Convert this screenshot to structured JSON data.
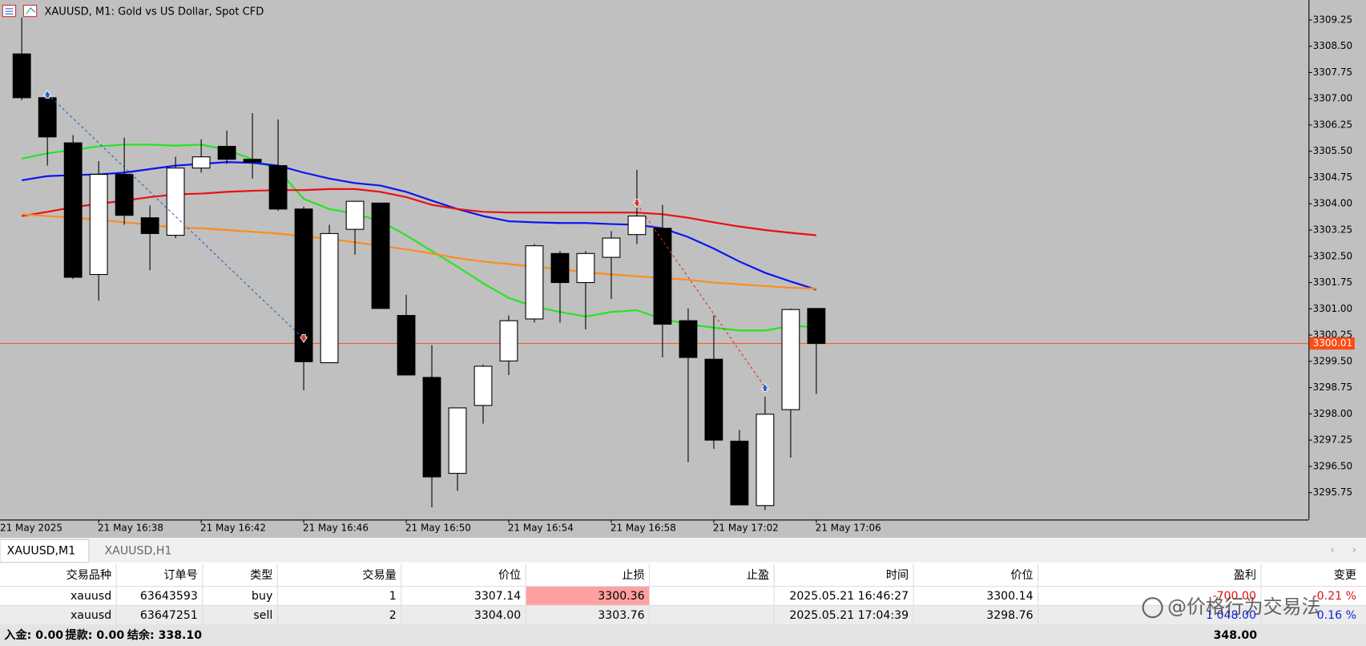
{
  "window": {
    "title": "XAUUSD, M1:  Gold vs US Dollar, Spot CFD"
  },
  "chart_data": {
    "type": "candlestick",
    "x_start_label": "21 May 2025",
    "categories": [
      null,
      null,
      null,
      "21 May 16:38",
      null,
      null,
      null,
      "21 May 16:42",
      null,
      null,
      null,
      "21 May 16:46",
      null,
      null,
      null,
      "21 May 16:50",
      null,
      null,
      null,
      "21 May 16:54",
      null,
      null,
      null,
      "21 May 16:58",
      null,
      null,
      null,
      "21 May 17:02",
      null,
      null,
      null,
      "21 May 17:06"
    ],
    "open": [
      3308.28,
      3307.03,
      3305.74,
      3301.98,
      3304.84,
      3303.6,
      3303.1,
      3305.02,
      3305.64,
      3305.27,
      3305.09,
      3303.85,
      3299.46,
      3303.27,
      3304.02,
      3300.81,
      3299.04,
      3296.3,
      3298.24,
      3299.51,
      3300.71,
      3302.58,
      3301.75,
      3302.47,
      3303.12,
      3303.3,
      3300.66,
      3299.56,
      3297.22,
      3295.38,
      3298.12,
      3301.01
    ],
    "high": [
      3309.32,
      3307.13,
      3305.96,
      3305.22,
      3305.89,
      3303.95,
      3305.34,
      3305.84,
      3306.09,
      3306.59,
      3306.41,
      3303.92,
      3303.4,
      3304.07,
      3304.02,
      3301.4,
      3299.96,
      3298.17,
      3299.41,
      3300.81,
      3302.85,
      3302.65,
      3302.65,
      3303.22,
      3304.97,
      3303.97,
      3301.01,
      3300.81,
      3297.54,
      3298.49,
      3301.01,
      3301.01
    ],
    "low": [
      3306.96,
      3305.09,
      3301.85,
      3301.23,
      3303.4,
      3302.1,
      3303.02,
      3304.89,
      3305.14,
      3304.72,
      3303.8,
      3298.67,
      3299.46,
      3302.55,
      3301.01,
      3299.11,
      3295.33,
      3295.8,
      3297.72,
      3299.11,
      3300.61,
      3300.61,
      3300.41,
      3301.28,
      3302.85,
      3299.61,
      3296.62,
      3297.0,
      3295.4,
      3295.25,
      3296.75,
      3298.57
    ],
    "close": [
      3307.03,
      3305.91,
      3301.9,
      3304.84,
      3303.67,
      3303.15,
      3305.02,
      3305.34,
      3305.27,
      3305.19,
      3303.85,
      3299.49,
      3303.15,
      3304.07,
      3301.01,
      3299.11,
      3296.2,
      3298.17,
      3299.36,
      3300.66,
      3302.8,
      3301.75,
      3302.58,
      3303.02,
      3303.65,
      3300.56,
      3299.61,
      3297.25,
      3295.4,
      3297.99,
      3300.98,
      3300.01
    ],
    "series": [
      {
        "color": "#22e61e",
        "values": [
          3305.29,
          3305.44,
          3305.54,
          3305.64,
          3305.69,
          3305.69,
          3305.66,
          3305.69,
          3305.54,
          3305.27,
          3304.97,
          3304.14,
          3303.85,
          3303.72,
          3303.5,
          3303.1,
          3302.65,
          3302.2,
          3301.73,
          3301.31,
          3301.06,
          3300.91,
          3300.78,
          3300.91,
          3300.96,
          3300.71,
          3300.56,
          3300.46,
          3300.38,
          3300.38,
          3300.51,
          3300.48
        ]
      },
      {
        "color": "#0a14f0",
        "values": [
          3304.67,
          3304.79,
          3304.82,
          3304.84,
          3304.89,
          3304.99,
          3305.09,
          3305.14,
          3305.19,
          3305.17,
          3305.09,
          3304.89,
          3304.72,
          3304.59,
          3304.52,
          3304.34,
          3304.09,
          3303.85,
          3303.65,
          3303.5,
          3303.47,
          3303.45,
          3303.45,
          3303.42,
          3303.4,
          3303.3,
          3303.05,
          3302.72,
          3302.35,
          3302.03,
          3301.78,
          3301.55
        ]
      },
      {
        "color": "#ea1010",
        "values": [
          3303.65,
          3303.77,
          3303.9,
          3304.0,
          3304.09,
          3304.19,
          3304.27,
          3304.29,
          3304.34,
          3304.37,
          3304.39,
          3304.39,
          3304.42,
          3304.42,
          3304.34,
          3304.19,
          3303.97,
          3303.85,
          3303.77,
          3303.75,
          3303.75,
          3303.75,
          3303.75,
          3303.75,
          3303.75,
          3303.7,
          3303.6,
          3303.47,
          3303.35,
          3303.25,
          3303.17,
          3303.1
        ]
      },
      {
        "color": "#ff8a1c",
        "values": [
          3303.7,
          3303.65,
          3303.6,
          3303.55,
          3303.47,
          3303.4,
          3303.32,
          3303.3,
          3303.25,
          3303.2,
          3303.15,
          3303.07,
          3303.0,
          3302.9,
          3302.8,
          3302.7,
          3302.58,
          3302.45,
          3302.35,
          3302.28,
          3302.2,
          3302.13,
          3302.05,
          3301.98,
          3301.93,
          3301.88,
          3301.83,
          3301.75,
          3301.7,
          3301.65,
          3301.6,
          3301.58
        ]
      }
    ],
    "ylim": [
      3294.98,
      3309.82
    ],
    "yticks": [
      3309.25,
      {
        "value": 3308.5,
        "label": "3308.50"
      },
      3307.75,
      {
        "value": 3307,
        "label": "3307.00"
      },
      3306.25,
      {
        "value": 3305.5,
        "label": "3305.50"
      },
      3304.75,
      {
        "value": 3304,
        "label": "3304.00"
      },
      3303.25,
      {
        "value": 3302.5,
        "label": "3302.50"
      },
      3301.75,
      {
        "value": 3301,
        "label": "3301.00"
      },
      3300.25,
      {
        "value": 3299.5,
        "label": "3299.50"
      },
      3298.75,
      {
        "value": 3298,
        "label": "3298.00"
      },
      3297.25,
      {
        "value": 3296.5,
        "label": "3296.50"
      },
      3295.75
    ],
    "current_price": 3300.01,
    "up_color": "#ffffff",
    "down_color": "#000000",
    "background": "#c0c0c0"
  },
  "tabs": [
    "XAUUSD,M1",
    "XAUUSD,H1"
  ],
  "table": {
    "columns": [
      "交易品种",
      "订单号",
      "类型",
      "交易量",
      "价位",
      "止损",
      "止盈",
      "时间",
      "价位",
      "盈利",
      "变更"
    ],
    "rows": [
      {
        "symbol": "xauusd",
        "ticket": "63643593",
        "type": "buy",
        "volume": "1",
        "open_price": "3307.14",
        "sl": "3300.36",
        "time": "2025.05.21 16:46:27",
        "price": "3300.14",
        "profit": "-700.00",
        "change": "-0.21 %"
      },
      {
        "symbol": "xauusd",
        "ticket": "63647251",
        "type": "sell",
        "volume": "2",
        "open_price": "3304.00",
        "sl": "3303.76",
        "time": "2025.05.21 17:04:39",
        "price": "3298.76",
        "profit": "1 048.00",
        "change": "0.16 %"
      }
    ]
  },
  "footer": {
    "deposit": "入金: 0.00",
    "withdrawal": "提款: 0.00",
    "balance": "结余: 338.10",
    "total": "348.00"
  },
  "watermark": "@价格行为交易法"
}
